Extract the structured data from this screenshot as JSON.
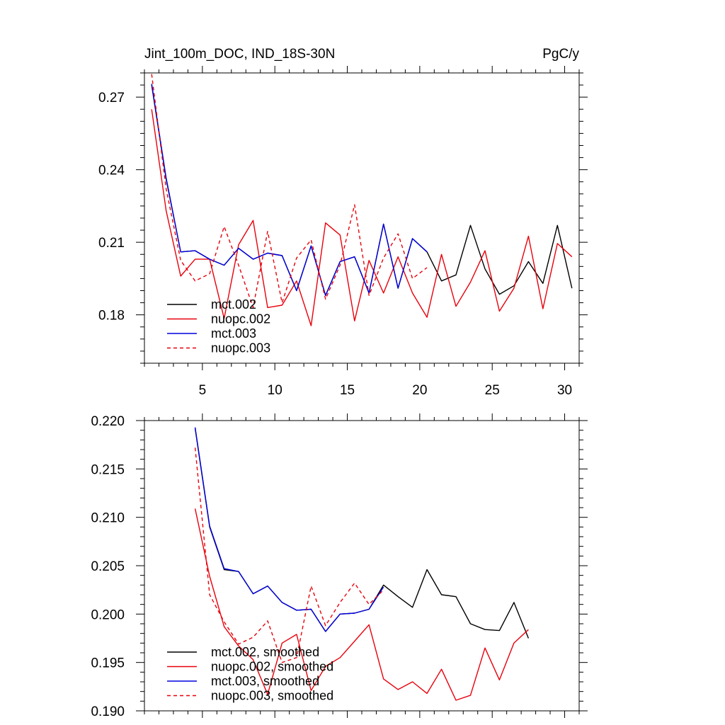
{
  "colors": {
    "black": "#000000",
    "red": "#e8000b",
    "blue": "#0000e0"
  },
  "chart_data": [
    {
      "type": "line",
      "title": "Jint_100m_DOC, IND_18S-30N",
      "units": "PgC/y",
      "xlabel": "",
      "ylabel": "",
      "xlim": [
        1,
        31
      ],
      "ylim": [
        0.16,
        0.28
      ],
      "x_ticks": [
        5,
        10,
        15,
        20,
        25,
        30
      ],
      "x_tick_labels": [
        "5",
        "10",
        "15",
        "20",
        "25",
        "30"
      ],
      "y_ticks": [
        0.18,
        0.21,
        0.24,
        0.27
      ],
      "y_tick_labels": [
        "0.18",
        "0.21",
        "0.24",
        "0.27"
      ],
      "grid": false,
      "legend_position": "bottom-left",
      "series": [
        {
          "name": "mct.002",
          "color": "#000000",
          "dash": "solid",
          "x": [
            1.5,
            2.5,
            3.5,
            4.5,
            5.5,
            6.5,
            7.5,
            8.5,
            9.5,
            10.5,
            11.5,
            12.5,
            13.5,
            14.5,
            15.5,
            16.5,
            17.5,
            18.5,
            19.5,
            20.5,
            21.5,
            22.5,
            23.5,
            24.5,
            25.5,
            26.5,
            27.5,
            28.5,
            29.5,
            30.5
          ],
          "y": [
            0.275,
            0.236,
            0.206,
            0.2065,
            0.203,
            0.2005,
            0.2075,
            0.203,
            0.2055,
            0.2045,
            0.19,
            0.2085,
            0.188,
            0.202,
            0.204,
            0.189,
            0.2175,
            0.191,
            0.2115,
            0.206,
            0.194,
            0.1965,
            0.217,
            0.199,
            0.1885,
            0.192,
            0.202,
            0.193,
            0.217,
            0.191
          ]
        },
        {
          "name": "nuopc.002",
          "color": "#e8000b",
          "dash": "solid",
          "x": [
            1.5,
            2.5,
            3.5,
            4.5,
            5.5,
            6.5,
            7.5,
            8.5,
            9.5,
            10.5,
            11.5,
            12.5,
            13.5,
            14.5,
            15.5,
            16.5,
            17.5,
            18.5,
            19.5,
            20.5,
            21.5,
            22.5,
            23.5,
            24.5,
            25.5,
            26.5,
            27.5,
            28.5,
            29.5,
            30.5
          ],
          "y": [
            0.265,
            0.223,
            0.196,
            0.203,
            0.203,
            0.1785,
            0.209,
            0.219,
            0.183,
            0.184,
            0.194,
            0.1755,
            0.218,
            0.213,
            0.1775,
            0.2025,
            0.189,
            0.204,
            0.189,
            0.179,
            0.205,
            0.1835,
            0.1935,
            0.2065,
            0.1815,
            0.191,
            0.2125,
            0.1825,
            0.2095,
            0.204
          ]
        },
        {
          "name": "mct.003",
          "color": "#0000e0",
          "dash": "solid",
          "x": [
            1.5,
            2.5,
            3.5,
            4.5,
            5.5,
            6.5,
            7.5,
            8.5,
            9.5,
            10.5,
            11.5,
            12.5,
            13.5,
            14.5,
            15.5,
            16.5,
            17.5,
            18.5,
            19.5,
            20.5
          ],
          "y": [
            0.2755,
            0.2365,
            0.206,
            0.2065,
            0.203,
            0.2005,
            0.2075,
            0.203,
            0.2055,
            0.2045,
            0.19,
            0.2085,
            0.188,
            0.202,
            0.204,
            0.189,
            0.2175,
            0.191,
            0.2115,
            0.206
          ]
        },
        {
          "name": "nuopc.003",
          "color": "#e8000b",
          "dash": "dashed",
          "x": [
            1.5,
            2.5,
            3.5,
            4.5,
            5.5,
            6.5,
            7.5,
            8.5,
            9.5,
            10.5,
            11.5,
            12.5,
            13.5,
            14.5,
            15.5,
            16.5,
            17.5,
            18.5,
            19.5,
            20.5
          ],
          "y": [
            0.2795,
            0.232,
            0.2025,
            0.194,
            0.197,
            0.2165,
            0.2005,
            0.183,
            0.2145,
            0.185,
            0.2035,
            0.211,
            0.1865,
            0.2005,
            0.2255,
            0.188,
            0.2035,
            0.2135,
            0.195,
            0.1995
          ]
        }
      ]
    },
    {
      "type": "line",
      "title": "",
      "xlabel": "",
      "ylabel": "",
      "xlim": [
        1,
        31
      ],
      "ylim": [
        0.19,
        0.22
      ],
      "x_ticks": [
        5,
        10,
        15,
        20,
        25,
        30
      ],
      "y_ticks": [
        0.19,
        0.195,
        0.2,
        0.205,
        0.21,
        0.215,
        0.22
      ],
      "y_tick_labels": [
        "0.190",
        "0.195",
        "0.200",
        "0.205",
        "0.210",
        "0.215",
        "0.220"
      ],
      "grid": false,
      "legend_position": "bottom-left",
      "series": [
        {
          "name": "mct.002, smoothed",
          "color": "#000000",
          "dash": "solid",
          "x": [
            4.5,
            5.5,
            6.5,
            7.5,
            8.5,
            9.5,
            10.5,
            11.5,
            12.5,
            13.5,
            14.5,
            15.5,
            16.5,
            17.5,
            18.5,
            19.5,
            20.5,
            21.5,
            22.5,
            23.5,
            24.5,
            25.5,
            26.5,
            27.5
          ],
          "y": [
            0.2192,
            0.209,
            0.2046,
            0.2044,
            0.2021,
            0.2029,
            0.2012,
            0.2004,
            0.2005,
            0.1982,
            0.2,
            0.2001,
            0.2005,
            0.203,
            0.2018,
            0.2007,
            0.2046,
            0.202,
            0.2018,
            0.199,
            0.1984,
            0.1983,
            0.2012,
            0.1975
          ]
        },
        {
          "name": "nuopc.002, smoothed",
          "color": "#e8000b",
          "dash": "solid",
          "x": [
            4.5,
            5.5,
            6.5,
            7.5,
            8.5,
            9.5,
            10.5,
            11.5,
            12.5,
            13.5,
            14.5,
            15.5,
            16.5,
            17.5,
            18.5,
            19.5,
            20.5,
            21.5,
            22.5,
            23.5,
            24.5,
            25.5,
            26.5,
            27.5
          ],
          "y": [
            0.2109,
            0.2039,
            0.1987,
            0.1967,
            0.1953,
            0.1917,
            0.197,
            0.1979,
            0.1921,
            0.1946,
            0.1955,
            0.1972,
            0.1989,
            0.1933,
            0.1922,
            0.193,
            0.1918,
            0.1943,
            0.1911,
            0.1916,
            0.1965,
            0.1932,
            0.197,
            0.1984
          ]
        },
        {
          "name": "mct.003, smoothed",
          "color": "#0000e0",
          "dash": "solid",
          "x": [
            4.5,
            5.5,
            6.5,
            7.5,
            8.5,
            9.5,
            10.5,
            11.5,
            12.5,
            13.5,
            14.5,
            15.5,
            16.5,
            17.5
          ],
          "y": [
            0.2193,
            0.2091,
            0.2047,
            0.2044,
            0.2021,
            0.2029,
            0.2012,
            0.2004,
            0.2005,
            0.1982,
            0.2,
            0.2001,
            0.2005,
            0.2028
          ]
        },
        {
          "name": "nuopc.003, smoothed",
          "color": "#e8000b",
          "dash": "dashed",
          "x": [
            4.5,
            5.5,
            6.5,
            7.5,
            8.5,
            9.5,
            10.5,
            11.5,
            12.5,
            13.5,
            14.5,
            15.5,
            16.5,
            17.5
          ],
          "y": [
            0.2172,
            0.202,
            0.1992,
            0.1969,
            0.1976,
            0.1993,
            0.195,
            0.1955,
            0.2029,
            0.1988,
            0.2012,
            0.2032,
            0.201,
            0.2025
          ]
        }
      ]
    }
  ]
}
